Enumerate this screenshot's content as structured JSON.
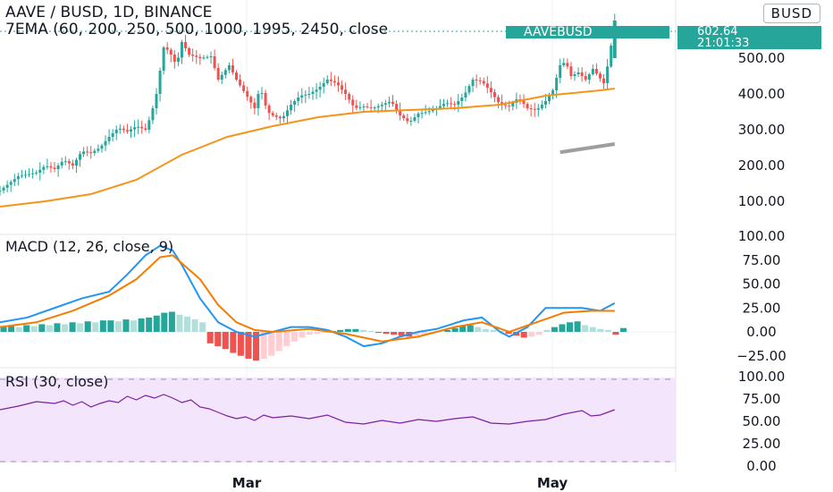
{
  "header": {
    "title": "AAVE / BUSD, 1D, BINANCE",
    "ema_label": "7EMA (60, 200, 250, 500, 1000, 1995, 2450, close",
    "badge": "BUSD"
  },
  "last_price": {
    "symbol": "AAVEBUSD",
    "price": "602.64",
    "countdown": "21:01:33"
  },
  "colors": {
    "up": "#26a69a",
    "down": "#ef5350",
    "ema": "#f7931a",
    "ema_long": "#9e9e9e",
    "macd": "#2196f3",
    "signal": "#f57c00",
    "rsi": "#7b1fa2",
    "rsi_band": "#f3e5fc"
  },
  "x_axis": {
    "labels": [
      "Mar",
      "May"
    ]
  },
  "chart_data": [
    {
      "type": "candlestick",
      "title": "AAVE / BUSD, 1D, BINANCE",
      "ylim": [
        50,
        650
      ],
      "yticks": [
        "100.00",
        "200.00",
        "300.00",
        "400.00",
        "500.00"
      ],
      "price_path": [
        [
          0,
          130
        ],
        [
          5,
          150
        ],
        [
          10,
          170
        ],
        [
          15,
          175
        ],
        [
          20,
          180
        ],
        [
          25,
          200
        ],
        [
          30,
          190
        ],
        [
          35,
          215
        ],
        [
          40,
          200
        ],
        [
          45,
          240
        ],
        [
          50,
          235
        ],
        [
          55,
          250
        ],
        [
          60,
          280
        ],
        [
          65,
          305
        ],
        [
          70,
          295
        ],
        [
          75,
          310
        ],
        [
          80,
          300
        ],
        [
          83,
          340
        ],
        [
          86,
          400
        ],
        [
          90,
          530
        ],
        [
          93,
          520
        ],
        [
          97,
          480
        ],
        [
          100,
          545
        ],
        [
          104,
          510
        ],
        [
          110,
          500
        ],
        [
          116,
          505
        ],
        [
          120,
          440
        ],
        [
          126,
          480
        ],
        [
          130,
          440
        ],
        [
          135,
          400
        ],
        [
          140,
          360
        ],
        [
          143,
          420
        ],
        [
          147,
          350
        ],
        [
          150,
          340
        ],
        [
          155,
          330
        ],
        [
          160,
          370
        ],
        [
          165,
          395
        ],
        [
          170,
          400
        ],
        [
          175,
          415
        ],
        [
          180,
          440
        ],
        [
          185,
          430
        ],
        [
          190,
          400
        ],
        [
          195,
          360
        ],
        [
          200,
          365
        ],
        [
          205,
          360
        ],
        [
          210,
          370
        ],
        [
          215,
          380
        ],
        [
          220,
          340
        ],
        [
          225,
          320
        ],
        [
          230,
          345
        ],
        [
          235,
          350
        ],
        [
          240,
          360
        ],
        [
          245,
          375
        ],
        [
          250,
          370
        ],
        [
          255,
          395
        ],
        [
          260,
          440
        ],
        [
          265,
          435
        ],
        [
          270,
          405
        ],
        [
          275,
          370
        ],
        [
          280,
          365
        ],
        [
          285,
          390
        ],
        [
          290,
          360
        ],
        [
          295,
          355
        ],
        [
          300,
          380
        ],
        [
          304,
          410
        ],
        [
          308,
          480
        ],
        [
          311,
          490
        ],
        [
          314,
          450
        ],
        [
          318,
          460
        ],
        [
          322,
          440
        ],
        [
          326,
          470
        ],
        [
          329,
          450
        ],
        [
          332,
          430
        ],
        [
          335,
          500
        ],
        [
          338,
          605
        ]
      ],
      "x_range": [
        0,
        345
      ],
      "ema": [
        [
          0,
          85
        ],
        [
          25,
          100
        ],
        [
          50,
          120
        ],
        [
          75,
          160
        ],
        [
          100,
          230
        ],
        [
          125,
          280
        ],
        [
          150,
          310
        ],
        [
          175,
          335
        ],
        [
          200,
          350
        ],
        [
          225,
          355
        ],
        [
          250,
          360
        ],
        [
          275,
          370
        ],
        [
          290,
          385
        ],
        [
          300,
          395
        ],
        [
          310,
          400
        ],
        [
          320,
          405
        ],
        [
          330,
          410
        ],
        [
          338,
          415
        ]
      ],
      "ema_long_start": [
        308,
        237
      ],
      "ema_long_end": [
        338,
        260
      ]
    },
    {
      "type": "line",
      "title": "MACD (12, 26, close, 9)",
      "ylim": [
        -30,
        100
      ],
      "yticks": [
        "100.00",
        "75.00",
        "50.00",
        "25.00",
        "0.00",
        "−25.00"
      ],
      "series": [
        {
          "role": "macd",
          "points": [
            [
              0,
              10
            ],
            [
              15,
              15
            ],
            [
              30,
              25
            ],
            [
              45,
              35
            ],
            [
              60,
              42
            ],
            [
              70,
              60
            ],
            [
              80,
              80
            ],
            [
              88,
              90
            ],
            [
              95,
              85
            ],
            [
              100,
              70
            ],
            [
              110,
              35
            ],
            [
              120,
              10
            ],
            [
              130,
              0
            ],
            [
              140,
              -5
            ],
            [
              150,
              0
            ],
            [
              160,
              5
            ],
            [
              170,
              5
            ],
            [
              180,
              2
            ],
            [
              190,
              -5
            ],
            [
              200,
              -15
            ],
            [
              210,
              -12
            ],
            [
              220,
              -5
            ],
            [
              230,
              0
            ],
            [
              240,
              3
            ],
            [
              255,
              12
            ],
            [
              265,
              15
            ],
            [
              275,
              0
            ],
            [
              280,
              -5
            ],
            [
              290,
              5
            ],
            [
              300,
              25
            ],
            [
              310,
              25
            ],
            [
              320,
              25
            ],
            [
              330,
              22
            ],
            [
              338,
              30
            ]
          ]
        },
        {
          "role": "signal",
          "points": [
            [
              0,
              5
            ],
            [
              20,
              10
            ],
            [
              40,
              22
            ],
            [
              60,
              38
            ],
            [
              75,
              55
            ],
            [
              88,
              78
            ],
            [
              95,
              80
            ],
            [
              110,
              55
            ],
            [
              120,
              28
            ],
            [
              130,
              10
            ],
            [
              140,
              2
            ],
            [
              150,
              0
            ],
            [
              170,
              3
            ],
            [
              190,
              -2
            ],
            [
              210,
              -10
            ],
            [
              230,
              -5
            ],
            [
              250,
              5
            ],
            [
              265,
              10
            ],
            [
              280,
              0
            ],
            [
              295,
              10
            ],
            [
              310,
              20
            ],
            [
              325,
              22
            ],
            [
              338,
              22
            ]
          ]
        }
      ],
      "histogram": [
        5,
        6,
        5,
        7,
        6,
        8,
        7,
        9,
        8,
        10,
        9,
        11,
        10,
        12,
        12,
        11,
        13,
        12,
        14,
        15,
        17,
        20,
        21,
        18,
        16,
        13,
        10,
        -12,
        -15,
        -18,
        -22,
        -25,
        -28,
        -30,
        -28,
        -25,
        -20,
        -15,
        -10,
        -6,
        -3,
        -2,
        -1,
        1,
        2,
        3,
        3,
        2,
        1,
        -1,
        -2,
        -3,
        -4,
        -5,
        -4,
        -3,
        -2,
        1,
        2,
        4,
        6,
        7,
        5,
        3,
        2,
        1,
        -2,
        -4,
        -6,
        -5,
        -3,
        2,
        5,
        8,
        10,
        11,
        7,
        5,
        3,
        2,
        -3,
        4
      ]
    },
    {
      "type": "line",
      "title": "RSI (30, close)",
      "ylim": [
        0,
        100
      ],
      "yticks": [
        "100.00",
        "75.00",
        "50.00",
        "25.00",
        "0.00"
      ],
      "bands": [
        30,
        70
      ],
      "series": [
        {
          "role": "rsi",
          "points": [
            [
              0,
              63
            ],
            [
              10,
              67
            ],
            [
              20,
              72
            ],
            [
              30,
              70
            ],
            [
              35,
              73
            ],
            [
              40,
              68
            ],
            [
              45,
              72
            ],
            [
              50,
              66
            ],
            [
              55,
              70
            ],
            [
              60,
              73
            ],
            [
              65,
              71
            ],
            [
              70,
              78
            ],
            [
              75,
              74
            ],
            [
              80,
              79
            ],
            [
              85,
              76
            ],
            [
              90,
              80
            ],
            [
              95,
              76
            ],
            [
              100,
              71
            ],
            [
              105,
              74
            ],
            [
              110,
              66
            ],
            [
              115,
              64
            ],
            [
              120,
              60
            ],
            [
              125,
              56
            ],
            [
              130,
              53
            ],
            [
              135,
              55
            ],
            [
              140,
              51
            ],
            [
              145,
              57
            ],
            [
              150,
              54
            ],
            [
              160,
              56
            ],
            [
              170,
              53
            ],
            [
              180,
              57
            ],
            [
              190,
              49
            ],
            [
              200,
              47
            ],
            [
              210,
              51
            ],
            [
              220,
              48
            ],
            [
              230,
              52
            ],
            [
              240,
              50
            ],
            [
              250,
              53
            ],
            [
              260,
              55
            ],
            [
              270,
              48
            ],
            [
              280,
              47
            ],
            [
              290,
              50
            ],
            [
              300,
              52
            ],
            [
              310,
              58
            ],
            [
              320,
              62
            ],
            [
              325,
              56
            ],
            [
              330,
              57
            ],
            [
              338,
              63
            ]
          ]
        }
      ]
    }
  ]
}
